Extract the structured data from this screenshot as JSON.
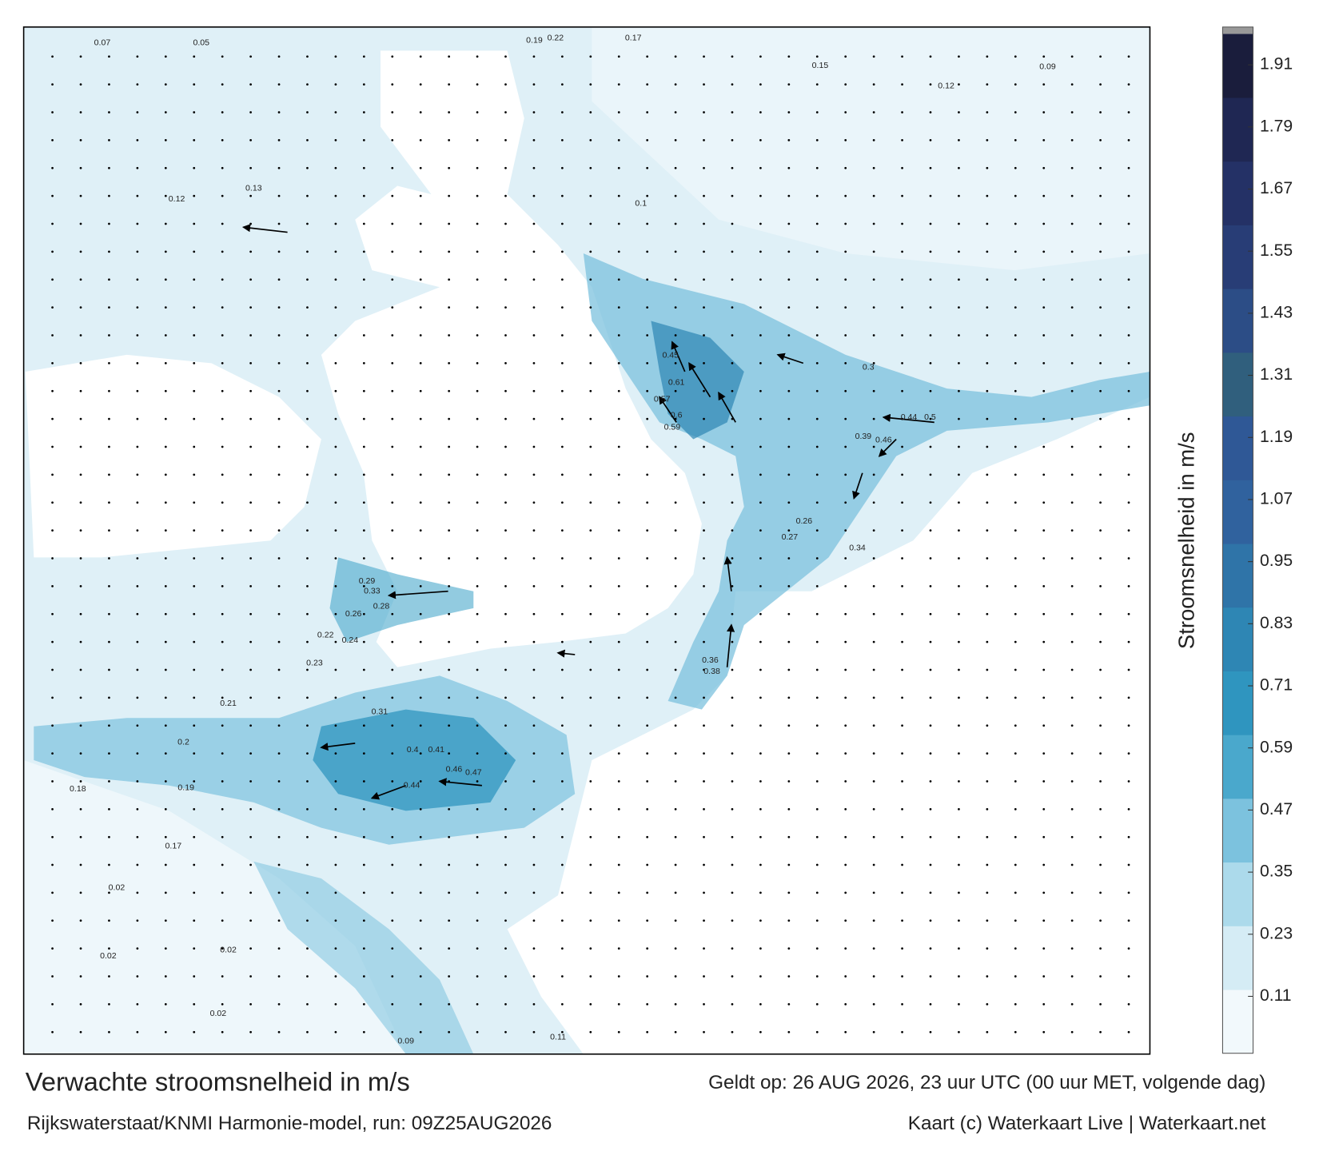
{
  "map": {
    "title": "Verwachte stroomsnelheid in m/s",
    "valid": "Geldt op: 26 AUG 2026, 23 uur UTC (00 uur MET, volgende dag)",
    "source": "Rijkswaterstaat/KNMI Harmonie-model, run: 09Z25AUG2026",
    "credit": "Kaart (c) Waterkaart Live | Waterkaart.net",
    "colorbar": {
      "label": "Stroomsnelheid in m/s",
      "lim": [
        0,
        1.97
      ],
      "ticks": [
        0.11,
        0.23,
        0.35,
        0.47,
        0.59,
        0.71,
        0.83,
        0.95,
        1.07,
        1.19,
        1.31,
        1.43,
        1.55,
        1.67,
        1.79,
        1.91
      ],
      "colors": [
        "#f2f9fc",
        "#d5ecf5",
        "#acdaeb",
        "#7cc2de",
        "#4aa8cc",
        "#2f95bf",
        "#2e86b4",
        "#2f74a8",
        "#30629e",
        "#2f5896",
        "#305f7d",
        "#2c4d86",
        "#283d76",
        "#243166",
        "#1f2753",
        "#1a1d3c"
      ]
    },
    "speed_labels": [
      0.6,
      0.61,
      0.57,
      0.59,
      0.45,
      0.44,
      0.46,
      0.47,
      0.4,
      0.41,
      0.36,
      0.38,
      0.5,
      0.44,
      0.39,
      0.46,
      0.34,
      0.27,
      0.26,
      0.2,
      0.19,
      0.18,
      0.21,
      0.17,
      0.12,
      0.13,
      0.1,
      0.05,
      0.07,
      0.22,
      0.19,
      0.17,
      0.15,
      0.12,
      0.09,
      0.02,
      0.02,
      0.02,
      0.02,
      0.11,
      0.09,
      0.31,
      0.33,
      0.29,
      0.28,
      0.26,
      0.24,
      0.22,
      0.23,
      0.3
    ]
  }
}
